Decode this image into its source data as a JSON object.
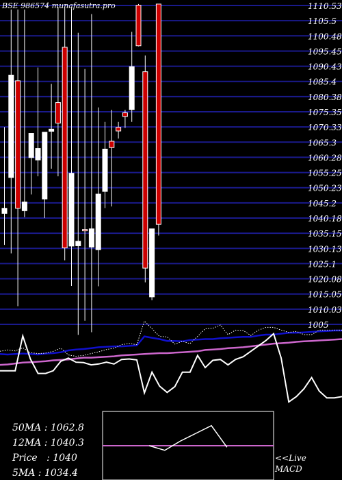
{
  "header": {
    "title": "BSE 986574  munafasutra.pro"
  },
  "colors": {
    "background": "#000000",
    "grid": "#1a1a8c",
    "bull": "#ffffff",
    "bear": "#cc0000",
    "ma_blue": "#1010cc",
    "ma_magenta": "#cc66cc",
    "price_line": "#ffffff"
  },
  "chart_data": {
    "type": "candlestick",
    "y_ticks": [
      "1110.53",
      "1105.5",
      "1100.48",
      "1095.45",
      "1090.43",
      "1085.4",
      "1080.38",
      "1075.35",
      "1070.33",
      "1065.3",
      "1060.28",
      "1055.25",
      "1050.23",
      "1045.2",
      "1040.18",
      "1035.15",
      "1030.13",
      "1025.1",
      "1020.08",
      "1015.05",
      "1010.03",
      "1005"
    ],
    "ylim": [
      1005,
      1110.53
    ],
    "candles": [
      {
        "o": 1041.7,
        "h": 1070.3,
        "l": 1031.3,
        "c": 1043.4
      },
      {
        "o": 1053.6,
        "h": 1109.2,
        "l": 1028.5,
        "c": 1087.5
      },
      {
        "o": 1085.6,
        "h": 1109.2,
        "l": 1011.0,
        "c": 1043.4
      },
      {
        "o": 1042.6,
        "h": 1109.2,
        "l": 1040.5,
        "c": 1045.5
      },
      {
        "o": 1060.2,
        "h": 1068.0,
        "l": 1048.0,
        "c": 1068.2
      },
      {
        "o": 1059.4,
        "h": 1090.0,
        "l": 1054.0,
        "c": 1063.2
      },
      {
        "o": 1046.5,
        "h": 1068.0,
        "l": 1040.2,
        "c": 1068.6
      },
      {
        "o": 1068.9,
        "h": 1084.6,
        "l": 1056.5,
        "c": 1069.6
      },
      {
        "o": 1078.4,
        "h": 1110.0,
        "l": 1054.0,
        "c": 1071.6
      },
      {
        "o": 1096.7,
        "h": 1110.0,
        "l": 1026.2,
        "c": 1030.3
      },
      {
        "o": 1030.9,
        "h": 1109.6,
        "l": 1017.7,
        "c": 1055.0
      },
      {
        "o": 1031.0,
        "h": 1101.5,
        "l": 1001.5,
        "c": 1032.5
      },
      {
        "o": 1036.4,
        "h": 1089.5,
        "l": 1006.2,
        "c": 1036.0
      },
      {
        "o": 1030.6,
        "h": 1107.7,
        "l": 1002.4,
        "c": 1036.6
      },
      {
        "o": 1029.7,
        "h": 1076.8,
        "l": 1017.6,
        "c": 1048.1
      },
      {
        "o": 1049.0,
        "h": 1072.0,
        "l": 1043.5,
        "c": 1063.0
      },
      {
        "o": 1065.6,
        "h": 1076.0,
        "l": 1044.0,
        "c": 1063.5
      },
      {
        "o": 1070.2,
        "h": 1072.0,
        "l": 1066.5,
        "c": 1069.0
      },
      {
        "o": 1075.0,
        "h": 1076.0,
        "l": 1070.0,
        "c": 1073.8
      },
      {
        "o": 1076.1,
        "h": 1101.8,
        "l": 1072.0,
        "c": 1090.3
      },
      {
        "o": 1110.6,
        "h": 1111.0,
        "l": 1097.0,
        "c": 1097.2
      },
      {
        "o": 1088.6,
        "h": 1094.0,
        "l": 1018.9,
        "c": 1023.6
      },
      {
        "o": 1014.1,
        "h": 1035.6,
        "l": 1013.0,
        "c": 1036.6
      },
      {
        "o": 1111.0,
        "h": 1111.0,
        "l": 1034.4,
        "c": 1038.1
      }
    ],
    "ma_overlay": {
      "dotted_white": [
        [
          0,
          1001.3
        ],
        [
          1,
          1001.6
        ],
        [
          2,
          1001.4
        ],
        [
          3,
          1002.1
        ],
        [
          4,
          1001.0
        ],
        [
          5,
          1000.8
        ],
        [
          6,
          1000.9
        ],
        [
          7,
          1001.3
        ],
        [
          8,
          1002.0
        ],
        [
          9,
          1000.5
        ],
        [
          10,
          1000.2
        ],
        [
          11,
          1000.4
        ],
        [
          12,
          1000.8
        ],
        [
          13,
          1001.2
        ],
        [
          14,
          1001.7
        ],
        [
          15,
          1002.0
        ],
        [
          16,
          1002.8
        ],
        [
          17,
          1003.0
        ],
        [
          18,
          1002.8
        ],
        [
          19,
          1008.0
        ],
        [
          20,
          1006.3
        ],
        [
          21,
          1004.6
        ],
        [
          22,
          1004.5
        ],
        [
          23,
          1002.9
        ],
        [
          24,
          1003.5
        ],
        [
          25,
          1003.0
        ],
        [
          26,
          1004.6
        ],
        [
          27,
          1006.3
        ],
        [
          28,
          1006.4
        ],
        [
          29,
          1007.1
        ],
        [
          30,
          1005.0
        ],
        [
          31,
          1006.0
        ],
        [
          32,
          1005.9
        ],
        [
          33,
          1004.8
        ],
        [
          34,
          1006.0
        ],
        [
          35,
          1006.6
        ],
        [
          36,
          1006.6
        ],
        [
          37,
          1006.0
        ],
        [
          38,
          1005.5
        ],
        [
          39,
          1005.7
        ],
        [
          40,
          1005.0
        ],
        [
          41,
          1005.0
        ],
        [
          42,
          1006.0
        ],
        [
          43,
          1006.0
        ],
        [
          44,
          1006.0
        ],
        [
          45,
          1006.0
        ]
      ],
      "blue": [
        [
          0,
          1000.7
        ],
        [
          1,
          1000.6
        ],
        [
          2,
          1000.7
        ],
        [
          3,
          1000.8
        ],
        [
          4,
          1000.7
        ],
        [
          5,
          1000.6
        ],
        [
          6,
          1000.8
        ],
        [
          7,
          1000.9
        ],
        [
          8,
          1001.1
        ],
        [
          9,
          1001.5
        ],
        [
          10,
          1001.7
        ],
        [
          11,
          1001.8
        ],
        [
          12,
          1002.0
        ],
        [
          13,
          1002.2
        ],
        [
          14,
          1002.3
        ],
        [
          15,
          1002.4
        ],
        [
          16,
          1002.4
        ],
        [
          17,
          1002.5
        ],
        [
          18,
          1002.6
        ],
        [
          19,
          1004.6
        ],
        [
          20,
          1004.3
        ],
        [
          21,
          1004.0
        ],
        [
          22,
          1003.6
        ],
        [
          23,
          1003.6
        ],
        [
          24,
          1003.5
        ],
        [
          25,
          1003.8
        ],
        [
          26,
          1003.9
        ],
        [
          27,
          1004.0
        ],
        [
          28,
          1004.0
        ],
        [
          29,
          1004.2
        ],
        [
          30,
          1004.3
        ],
        [
          31,
          1004.4
        ],
        [
          32,
          1004.5
        ],
        [
          33,
          1004.5
        ],
        [
          34,
          1004.8
        ],
        [
          35,
          1005.0
        ],
        [
          36,
          1005.0
        ],
        [
          37,
          1005.2
        ],
        [
          38,
          1005.4
        ],
        [
          39,
          1005.4
        ],
        [
          40,
          1005.5
        ],
        [
          41,
          1005.6
        ],
        [
          42,
          1005.7
        ],
        [
          43,
          1005.8
        ],
        [
          44,
          1005.9
        ],
        [
          45,
          1005.9
        ]
      ],
      "magenta": [
        [
          0,
          998.3
        ],
        [
          1,
          998.4
        ],
        [
          2,
          998.6
        ],
        [
          3,
          998.8
        ],
        [
          4,
          998.9
        ],
        [
          5,
          999.0
        ],
        [
          6,
          999.1
        ],
        [
          7,
          999.3
        ],
        [
          8,
          999.4
        ],
        [
          9,
          999.5
        ],
        [
          10,
          999.7
        ],
        [
          11,
          999.9
        ],
        [
          12,
          999.9
        ],
        [
          13,
          1000.0
        ],
        [
          14,
          1000.1
        ],
        [
          15,
          1000.2
        ],
        [
          16,
          1000.4
        ],
        [
          17,
          1000.5
        ],
        [
          18,
          1000.6
        ],
        [
          19,
          1000.7
        ],
        [
          20,
          1000.8
        ],
        [
          21,
          1000.9
        ],
        [
          22,
          1000.9
        ],
        [
          23,
          1001.0
        ],
        [
          24,
          1001.1
        ],
        [
          25,
          1001.2
        ],
        [
          26,
          1001.3
        ],
        [
          27,
          1001.6
        ],
        [
          28,
          1001.7
        ],
        [
          29,
          1001.8
        ],
        [
          30,
          1002.0
        ],
        [
          31,
          1002.1
        ],
        [
          32,
          1002.2
        ],
        [
          33,
          1002.4
        ],
        [
          34,
          1002.6
        ],
        [
          35,
          1002.8
        ],
        [
          36,
          1003.0
        ],
        [
          37,
          1003.1
        ],
        [
          38,
          1003.2
        ],
        [
          39,
          1003.4
        ],
        [
          40,
          1003.5
        ],
        [
          41,
          1003.6
        ],
        [
          42,
          1003.7
        ],
        [
          43,
          1003.8
        ],
        [
          44,
          1003.9
        ],
        [
          45,
          1004.0
        ]
      ],
      "price_white": [
        [
          0,
          997.0
        ],
        [
          1,
          997.0
        ],
        [
          2,
          997.0
        ],
        [
          3,
          1004.7
        ],
        [
          4,
          999.6
        ],
        [
          5,
          996.4
        ],
        [
          6,
          996.4
        ],
        [
          7,
          997.0
        ],
        [
          8,
          999.1
        ],
        [
          9,
          999.8
        ],
        [
          10,
          998.9
        ],
        [
          11,
          998.8
        ],
        [
          12,
          998.3
        ],
        [
          13,
          998.5
        ],
        [
          14,
          998.9
        ],
        [
          15,
          998.5
        ],
        [
          16,
          999.5
        ],
        [
          17,
          999.6
        ],
        [
          18,
          999.4
        ],
        [
          19,
          992.1
        ],
        [
          20,
          996.7
        ],
        [
          21,
          993.6
        ],
        [
          22,
          992.2
        ],
        [
          23,
          993.5
        ],
        [
          24,
          996.7
        ],
        [
          25,
          996.7
        ],
        [
          26,
          1000.4
        ],
        [
          27,
          997.7
        ],
        [
          28,
          999.3
        ],
        [
          29,
          999.5
        ],
        [
          30,
          998.3
        ],
        [
          31,
          999.5
        ],
        [
          32,
          1000.1
        ],
        [
          33,
          1001.3
        ],
        [
          34,
          1002.5
        ],
        [
          35,
          1003.7
        ],
        [
          36,
          1005.2
        ],
        [
          37,
          999.8
        ],
        [
          38,
          990.1
        ],
        [
          39,
          991.3
        ],
        [
          40,
          993.0
        ],
        [
          41,
          995.5
        ],
        [
          42,
          992.5
        ],
        [
          43,
          991.0
        ],
        [
          44,
          991.0
        ],
        [
          45,
          991.3
        ]
      ]
    },
    "macd": {
      "signal": [
        [
          0,
          0
        ],
        [
          1,
          0
        ],
        [
          2,
          0
        ],
        [
          3,
          0
        ],
        [
          4,
          0
        ],
        [
          5,
          0
        ],
        [
          6,
          0
        ],
        [
          7,
          0
        ],
        [
          8,
          0
        ],
        [
          9,
          0
        ],
        [
          10,
          0
        ],
        [
          11,
          0
        ]
      ],
      "macd_line": [
        [
          0,
          0
        ],
        [
          1,
          0
        ],
        [
          2,
          0
        ],
        [
          3,
          0
        ],
        [
          4,
          -0.3
        ],
        [
          5,
          0.3
        ],
        [
          6,
          0.8
        ],
        [
          7,
          1.3
        ],
        [
          8,
          -0.1
        ],
        [
          9,
          0
        ],
        [
          10,
          0.2
        ],
        [
          11,
          0
        ]
      ]
    }
  },
  "stats": {
    "ma50": "50MA : 1062.8",
    "ma12": "12MA : 1040.3",
    "price": "Price   : 1040",
    "ma5": "5MA : 1034.4"
  },
  "macd_label": {
    "line1": "<<Live",
    "line2": "MACD"
  }
}
